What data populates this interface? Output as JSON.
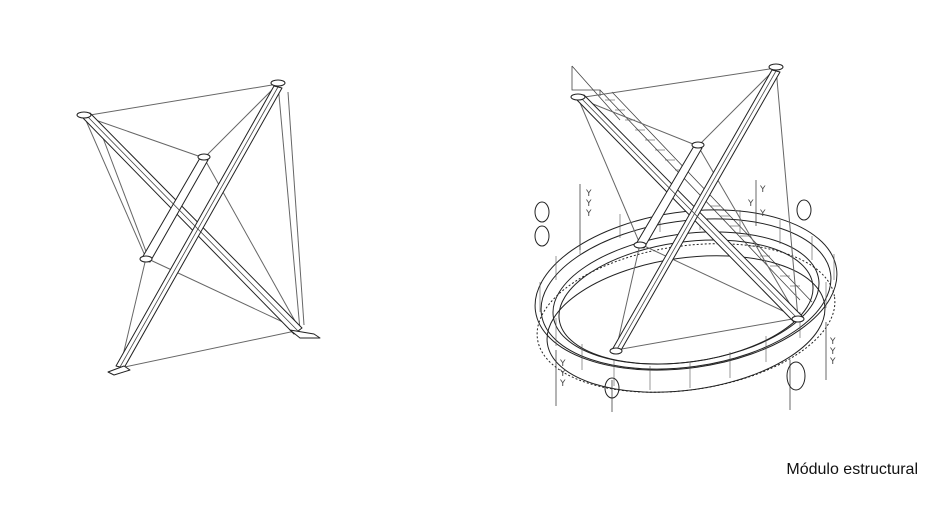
{
  "caption": "Módulo estructural",
  "colors": {
    "background": "#ffffff",
    "line": "#222222",
    "cable": "#666666"
  },
  "figures": [
    {
      "name": "tensegrity-module-left"
    },
    {
      "name": "tensegrity-module-with-ring-walkway-right"
    }
  ]
}
